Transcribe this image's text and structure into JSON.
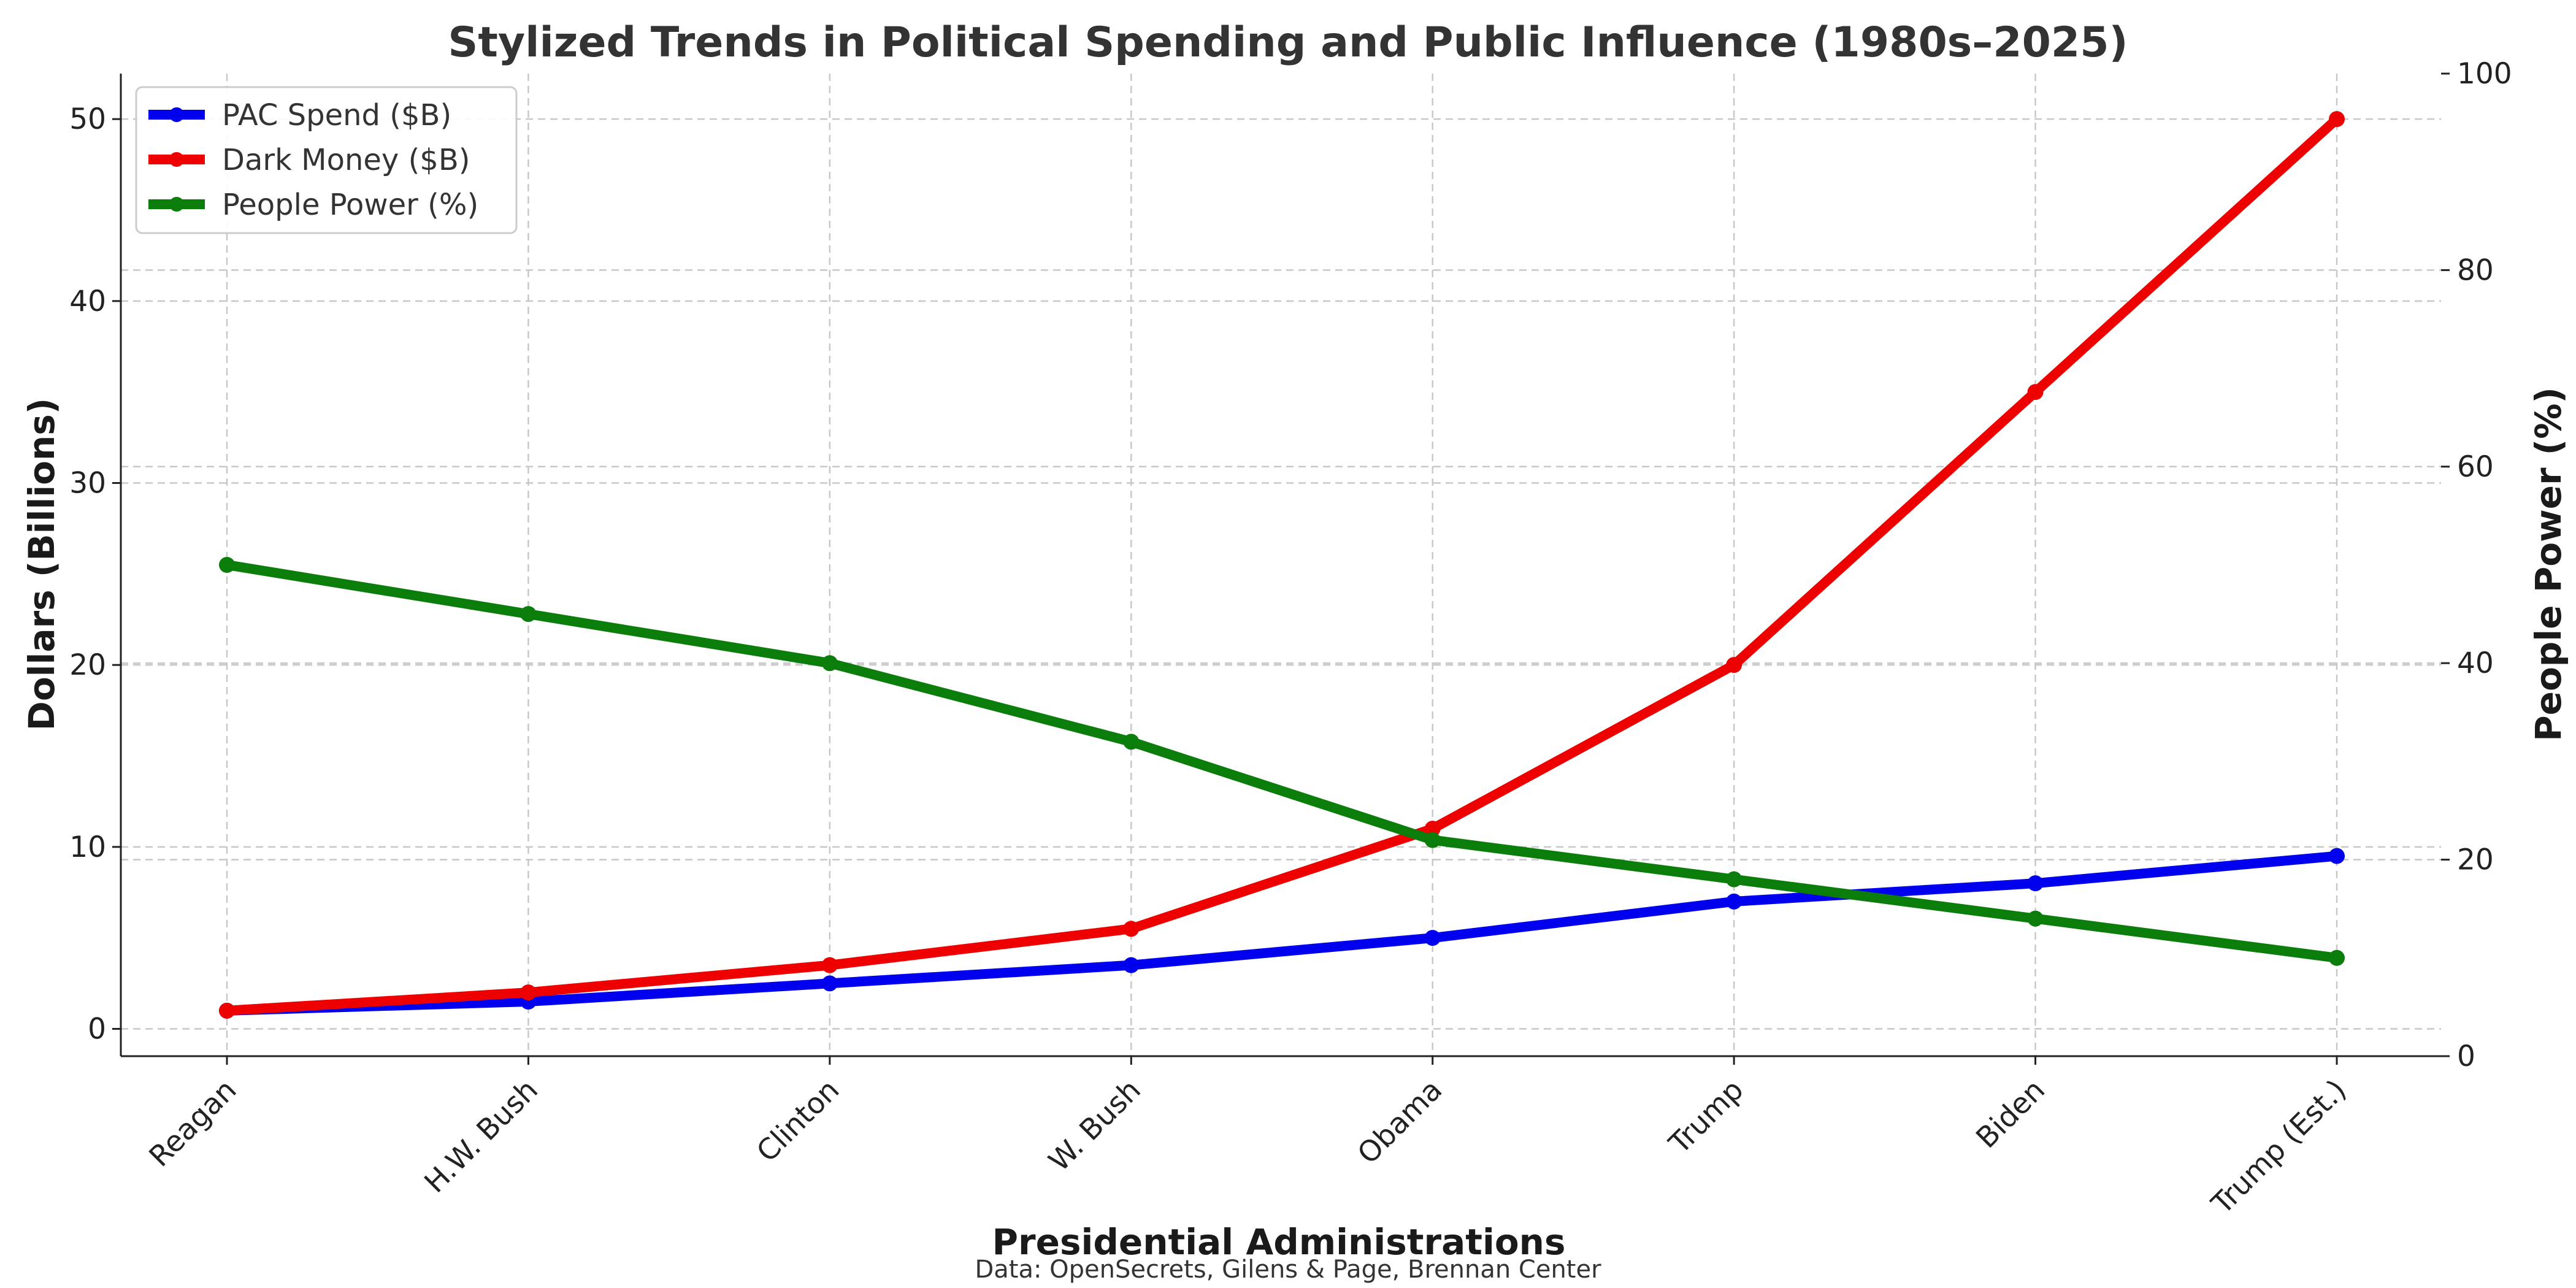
{
  "chart_data": {
    "type": "line",
    "title": "Stylized Trends in Political Spending and Public Influence (1980s–2025)",
    "xlabel": "Presidential Administrations",
    "ylabel": "Dollars (Billions)",
    "y2label": "People Power (%)",
    "source": "Data: OpenSecrets, Gilens & Page, Brennan Center",
    "categories": [
      "Reagan",
      "H.W. Bush",
      "Clinton",
      "W. Bush",
      "Obama",
      "Trump",
      "Biden",
      "Trump (Est.)"
    ],
    "ylim": [
      -1.5,
      52.5
    ],
    "y_ticks": [
      0,
      10,
      20,
      30,
      40,
      50
    ],
    "y2lim": [
      0,
      100
    ],
    "y2_ticks": [
      0,
      20,
      40,
      60,
      80,
      100
    ],
    "grid": true,
    "legend_position": "top-left",
    "series": [
      {
        "name": "PAC Spend ($B)",
        "axis": "left",
        "color": "#0000ee",
        "values": [
          1,
          1.5,
          2.5,
          3.5,
          5,
          7,
          8,
          9.5
        ]
      },
      {
        "name": "Dark Money ($B)",
        "axis": "left",
        "color": "#ee0000",
        "values": [
          1,
          2,
          3.5,
          5.5,
          11,
          20,
          35,
          50
        ]
      },
      {
        "name": "People Power (%)",
        "axis": "right",
        "color": "#0a7d0a",
        "values": [
          50,
          45,
          40,
          32,
          22,
          18,
          14,
          10
        ]
      }
    ]
  }
}
